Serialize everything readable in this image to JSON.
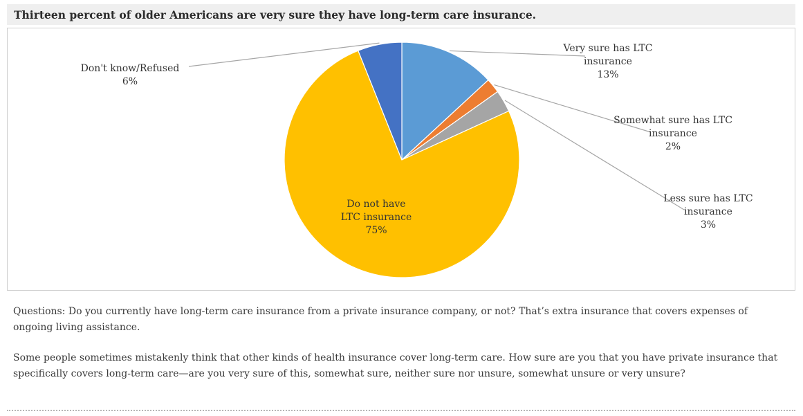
{
  "header": {
    "title": "Thirteen percent of older Americans are very sure they have long-term care insurance."
  },
  "chart_data": {
    "type": "pie",
    "title": "Thirteen percent of older Americans are very sure they have long-term care insurance.",
    "slices": [
      {
        "name": "Very sure has LTC insurance",
        "label_lines": [
          "Very sure has LTC",
          "insurance"
        ],
        "value": 13,
        "value_label": "13%",
        "color": "#5b9bd5"
      },
      {
        "name": "Somewhat sure has LTC insurance",
        "label_lines": [
          "Somewhat sure has LTC",
          "insurance"
        ],
        "value": 2,
        "value_label": "2%",
        "color": "#ed7d31"
      },
      {
        "name": "Less sure has LTC insurance",
        "label_lines": [
          "Less sure has LTC",
          "insurance"
        ],
        "value": 3,
        "value_label": "3%",
        "color": "#a5a5a5"
      },
      {
        "name": "Do not have LTC insurance",
        "label_lines": [
          "Do not have",
          "LTC insurance"
        ],
        "value": 75,
        "value_label": "75%",
        "color": "#ffc000"
      },
      {
        "name": "Don't know/Refused",
        "label_lines": [
          "Don't know/Refused"
        ],
        "value": 6,
        "value_label": "6%",
        "color": "#4472c4"
      }
    ]
  },
  "notes": {
    "question1": "Questions: Do you currently have long-term care insurance from a private insurance company, or not? That’s extra insurance that covers expenses of ongoing living assistance.",
    "question2": "Some people sometimes mistakenly think that other kinds of health insurance cover long-term care. How sure are you that you have private insurance that specifically covers long-term care—are you very sure of this, somewhat sure, neither sure nor unsure, somewhat unsure or very unsure?"
  }
}
